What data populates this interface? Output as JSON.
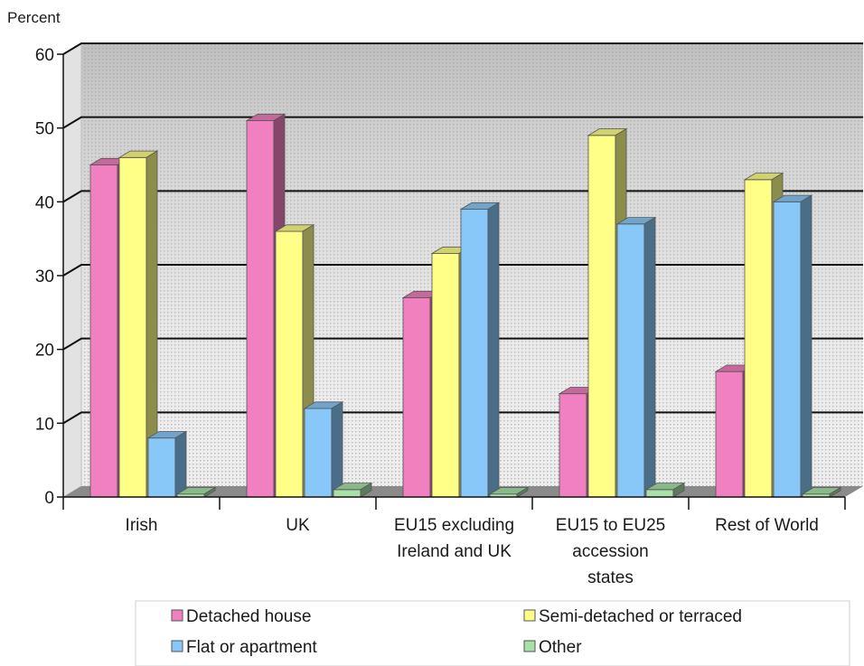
{
  "chart_data": {
    "type": "bar",
    "ylabel": "Percent",
    "ylim": [
      0,
      60
    ],
    "yticks": [
      0,
      10,
      20,
      30,
      40,
      50,
      60
    ],
    "grid": true,
    "legend_position": "bottom",
    "categories": [
      "Irish",
      "UK",
      "EU15 excluding Ireland and UK",
      "EU15 to EU25 accession states",
      "Rest of World"
    ],
    "category_lines": [
      [
        "Irish"
      ],
      [
        "UK"
      ],
      [
        "EU15 excluding",
        "Ireland and UK"
      ],
      [
        "EU15 to EU25",
        "accession",
        "states"
      ],
      [
        "Rest of World"
      ]
    ],
    "series": [
      {
        "name": "Detached house",
        "color": "#f080c0",
        "values": [
          45,
          51,
          27,
          14,
          17
        ]
      },
      {
        "name": "Semi-detached or terraced",
        "color": "#ffff88",
        "values": [
          46,
          36,
          33,
          49,
          43
        ]
      },
      {
        "name": "Flat or apartment",
        "color": "#88c8f8",
        "values": [
          8,
          12,
          39,
          37,
          40
        ]
      },
      {
        "name": "Other",
        "color": "#a8e0a8",
        "values": [
          0.4,
          1,
          0.4,
          1,
          0.4
        ]
      }
    ]
  }
}
